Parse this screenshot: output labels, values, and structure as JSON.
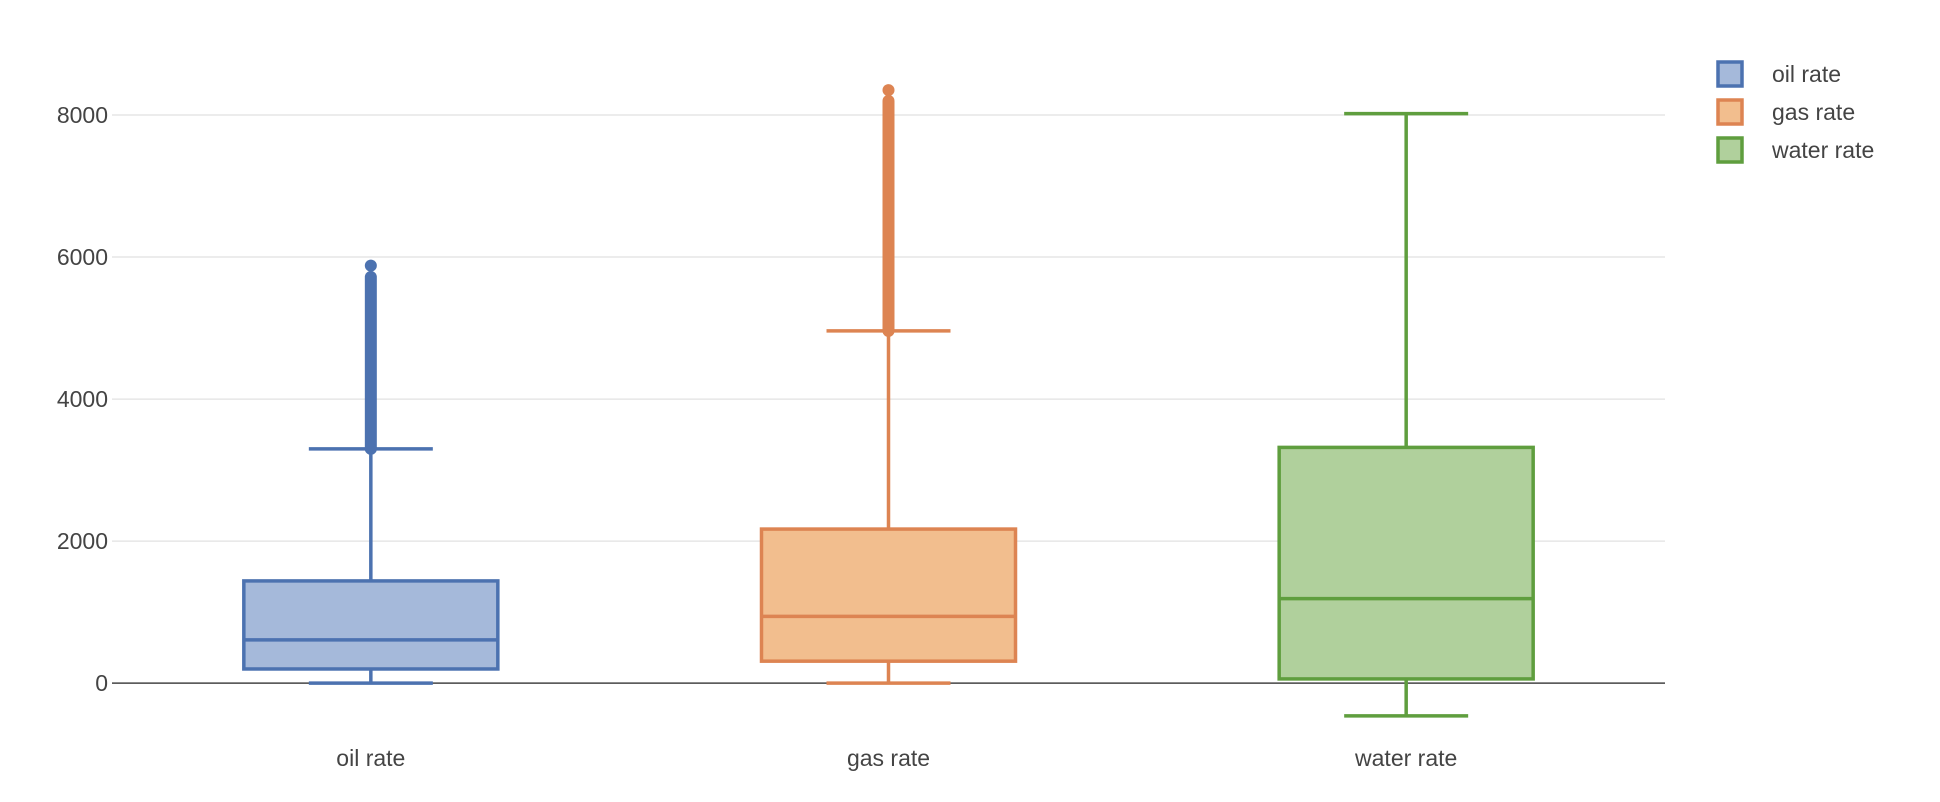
{
  "chart_data": {
    "type": "box",
    "title": "",
    "xlabel": "",
    "ylabel": "",
    "categories": [
      "oil rate",
      "gas rate",
      "water rate"
    ],
    "ylim": [
      -800,
      9000
    ],
    "yticks": [
      0,
      2000,
      4000,
      6000,
      8000
    ],
    "grid": true,
    "legend_position": "top-right",
    "series": [
      {
        "name": "oil rate",
        "color": "#4c72b0",
        "fill": "#a5b9da",
        "lower_fence": 0,
        "q1": 200,
        "median": 610,
        "q3": 1440,
        "upper_fence": 3300,
        "outliers_min": 3300,
        "outliers_max": 5720,
        "outlier_extreme": 5880
      },
      {
        "name": "gas rate",
        "color": "#dd8452",
        "fill": "#f2be8e",
        "lower_fence": 0,
        "q1": 310,
        "median": 940,
        "q3": 2170,
        "upper_fence": 4960,
        "outliers_min": 4960,
        "outliers_max": 8200,
        "outlier_extreme": 8350
      },
      {
        "name": "water rate",
        "color": "#5f9e3e",
        "fill": "#b0d09c",
        "lower_fence": -460,
        "q1": 60,
        "median": 1190,
        "q3": 3320,
        "upper_fence": 8020
      }
    ]
  }
}
